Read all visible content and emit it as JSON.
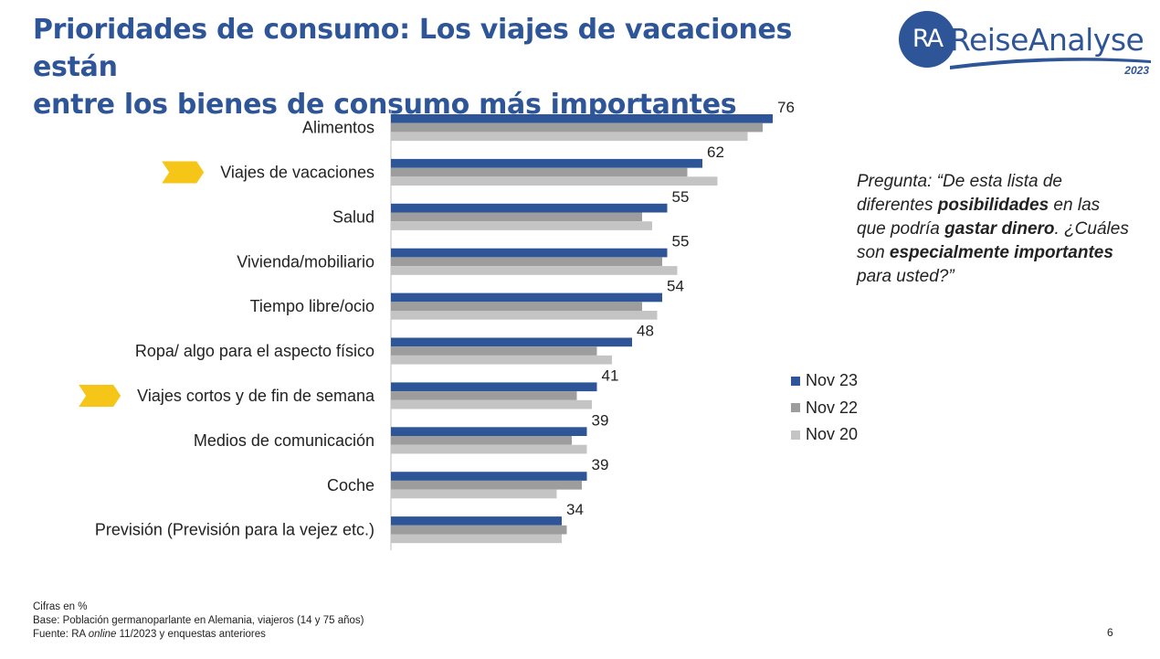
{
  "title_line1": "Prioridades de consumo: Los viajes de vacaciones están",
  "title_line2": "entre los bienes de consumo más importantes",
  "logo": {
    "initials": "RA",
    "name": "ReiseAnalyse",
    "year": "2023"
  },
  "question": {
    "p1": "Pregunta: “De esta lista de diferentes ",
    "b1": "posibilidades",
    "p2": " en las que podría ",
    "b2": "gastar dinero",
    "p3": ". ¿Cuáles son ",
    "b3": "especialmente importantes",
    "p4": " para usted?”"
  },
  "colors": {
    "nov23": "#2e5597",
    "nov22": "#9d9d9d",
    "nov20": "#c4c4c4",
    "highlight": "#f5c518",
    "axis": "#bfbfbf"
  },
  "chart_data": {
    "type": "bar",
    "orientation": "horizontal",
    "categories": [
      "Alimentos",
      "Viajes de vacaciones",
      "Salud",
      "Vivienda/mobiliario",
      "Tiempo libre/ocio",
      "Ropa/ algo para el aspecto físico",
      "Viajes cortos y de fin de semana",
      "Medios de comunicación",
      "Coche",
      "Previsión (Previsión para la vejez etc.)"
    ],
    "highlighted_categories": [
      "Viajes de vacaciones",
      "Viajes cortos y de fin de semana"
    ],
    "series": [
      {
        "name": "Nov 23",
        "values": [
          76,
          62,
          55,
          55,
          54,
          48,
          41,
          39,
          39,
          34
        ],
        "labeled": true
      },
      {
        "name": "Nov 22",
        "values": [
          74,
          59,
          50,
          54,
          50,
          41,
          37,
          36,
          38,
          35
        ],
        "labeled": false
      },
      {
        "name": "Nov 20",
        "values": [
          71,
          65,
          52,
          57,
          53,
          44,
          40,
          39,
          33,
          34
        ],
        "labeled": false
      }
    ],
    "xlim": [
      0,
      80
    ],
    "unit": "%",
    "grid": false,
    "legend": "right"
  },
  "footer": {
    "line1": "Cifras en %",
    "line2": "Base: Población germanoparlante en Alemania, viajeros (14 y 75 años)",
    "line3_pre": "Fuente: RA ",
    "line3_em": "online",
    "line3_post": " 11/2023 y enquestas anteriores"
  },
  "page_number": "6"
}
